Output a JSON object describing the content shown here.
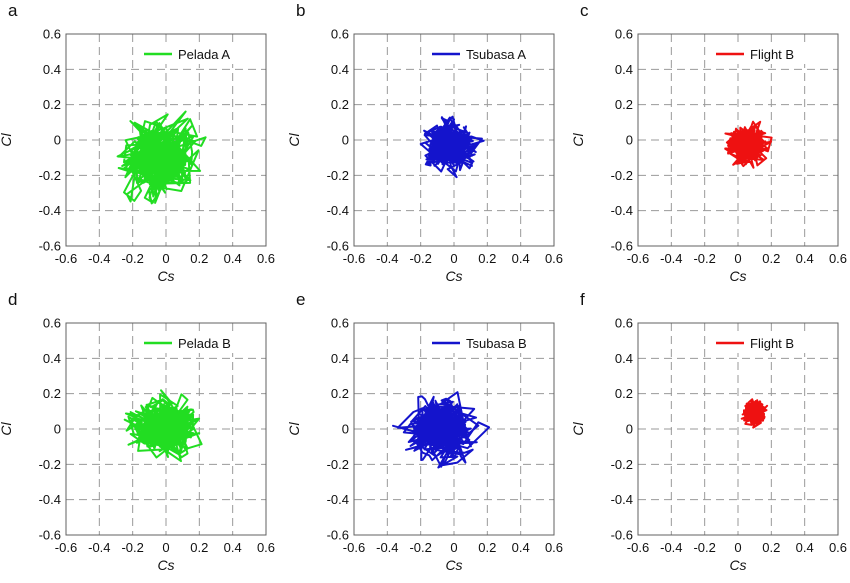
{
  "chart_data": [
    {
      "panel": "a",
      "type": "line",
      "legend": "Pelada A",
      "color": "#22dd22",
      "xlabel": "Cs",
      "ylabel": "Cl",
      "xlim": [
        -0.6,
        0.6
      ],
      "ylim": [
        -0.6,
        0.6
      ],
      "xticks": [
        "-0.6",
        "-0.4",
        "-0.2",
        "0",
        "0.2",
        "0.4",
        "0.6"
      ],
      "yticks": [
        "-0.6",
        "-0.4",
        "-0.2",
        "0",
        "0.2",
        "0.4",
        "0.6"
      ],
      "grid": true,
      "legend_position": "top-right",
      "center": [
        -0.05,
        -0.1
      ],
      "spread": [
        0.22,
        0.2
      ],
      "max_radius": 0.31
    },
    {
      "panel": "b",
      "type": "line",
      "legend": "Tsubasa A",
      "color": "#1414cc",
      "xlabel": "Cs",
      "ylabel": "Cl",
      "xlim": [
        -0.6,
        0.6
      ],
      "ylim": [
        -0.6,
        0.6
      ],
      "xticks": [
        "-0.6",
        "-0.4",
        "-0.2",
        "0",
        "0.2",
        "0.4",
        "0.6"
      ],
      "yticks": [
        "-0.6",
        "-0.4",
        "-0.2",
        "0",
        "0.2",
        "0.4",
        "0.6"
      ],
      "grid": true,
      "legend_position": "top-right",
      "center": [
        -0.02,
        -0.03
      ],
      "spread": [
        0.14,
        0.13
      ],
      "max_radius": 0.2
    },
    {
      "panel": "c",
      "type": "line",
      "legend": "Flight B",
      "color": "#ee1111",
      "xlabel": "Cs",
      "ylabel": "Cl",
      "xlim": [
        -0.6,
        0.6
      ],
      "ylim": [
        -0.6,
        0.6
      ],
      "xticks": [
        "-0.6",
        "-0.4",
        "-0.2",
        "0",
        "0.2",
        "0.4",
        "0.6"
      ],
      "yticks": [
        "-0.6",
        "-0.4",
        "-0.2",
        "0",
        "0.2",
        "0.4",
        "0.6"
      ],
      "grid": true,
      "legend_position": "top-right",
      "center": [
        0.05,
        -0.03
      ],
      "spread": [
        0.11,
        0.1
      ],
      "max_radius": 0.16
    },
    {
      "panel": "d",
      "type": "line",
      "legend": "Pelada B",
      "color": "#22dd22",
      "xlabel": "Cs",
      "ylabel": "Cl",
      "xlim": [
        -0.6,
        0.6
      ],
      "ylim": [
        -0.6,
        0.6
      ],
      "xticks": [
        "-0.6",
        "-0.4",
        "-0.2",
        "0",
        "0.2",
        "0.4",
        "0.6"
      ],
      "yticks": [
        "-0.6",
        "-0.4",
        "-0.2",
        "0",
        "0.2",
        "0.4",
        "0.6"
      ],
      "grid": true,
      "legend_position": "top-right",
      "center": [
        0.0,
        0.02
      ],
      "spread": [
        0.2,
        0.16
      ],
      "max_radius": 0.25
    },
    {
      "panel": "e",
      "type": "line",
      "legend": "Tsubasa B",
      "color": "#1414cc",
      "xlabel": "Cs",
      "ylabel": "Cl",
      "xlim": [
        -0.6,
        0.6
      ],
      "ylim": [
        -0.6,
        0.6
      ],
      "xticks": [
        "-0.6",
        "-0.4",
        "-0.2",
        "0",
        "0.2",
        "0.4",
        "0.6"
      ],
      "yticks": [
        "-0.6",
        "-0.4",
        "-0.2",
        "0",
        "0.2",
        "0.4",
        "0.6"
      ],
      "grid": true,
      "legend_position": "top-right",
      "center": [
        -0.07,
        0.0
      ],
      "spread": [
        0.2,
        0.17
      ],
      "max_radius": 0.3
    },
    {
      "panel": "f",
      "type": "line",
      "legend": "Flight B",
      "color": "#ee1111",
      "xlabel": "Cs",
      "ylabel": "Cl",
      "xlim": [
        -0.6,
        0.6
      ],
      "ylim": [
        -0.6,
        0.6
      ],
      "xticks": [
        "-0.6",
        "-0.4",
        "-0.2",
        "0",
        "0.2",
        "0.4",
        "0.6"
      ],
      "yticks": [
        "-0.6",
        "-0.4",
        "-0.2",
        "0",
        "0.2",
        "0.4",
        "0.6"
      ],
      "grid": true,
      "legend_position": "top-right",
      "center": [
        0.1,
        0.09
      ],
      "spread": [
        0.06,
        0.06
      ],
      "max_radius": 0.09
    }
  ]
}
